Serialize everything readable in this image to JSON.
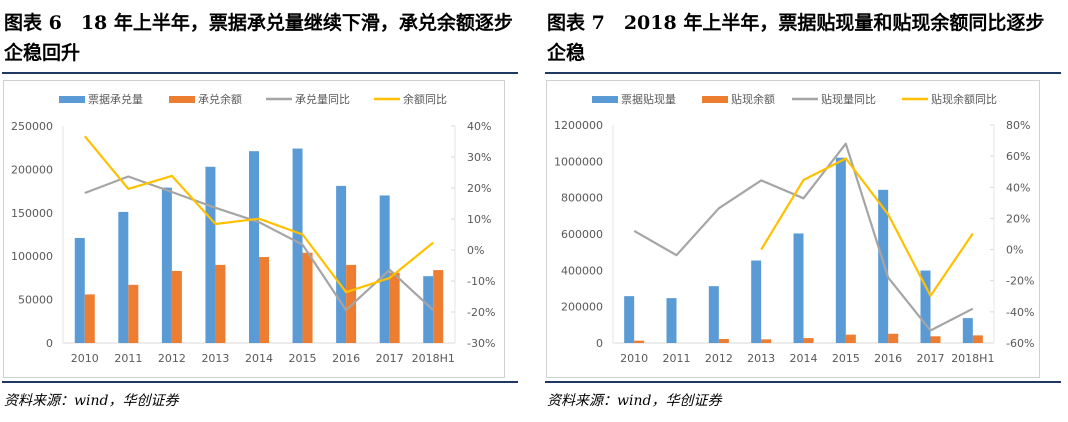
{
  "charts_meta": [
    {
      "title": "图表 6　18 年上半年，票据承兑量继续下滑，承兑余额逐步企稳回升",
      "source": "资料来源：wind，华创证券"
    },
    {
      "title": "图表 7　2018 年上半年，票据贴现量和贴现余额同比逐步企稳",
      "source": "资料来源：wind，华创证券"
    }
  ],
  "colors": {
    "blue": "#5b9bd5",
    "orange": "#ed7d31",
    "gray": "#a5a5a5",
    "yellow": "#ffc000",
    "rule": "#1f3864"
  },
  "chart_data": [
    {
      "type": "bar+line",
      "categories": [
        "2010",
        "2011",
        "2012",
        "2013",
        "2014",
        "2015",
        "2016",
        "2017",
        "2018H1"
      ],
      "ylim": [
        0,
        250000
      ],
      "yticks": [
        "0",
        "50000",
        "100000",
        "150000",
        "200000",
        "250000"
      ],
      "y2lim": [
        -30,
        40
      ],
      "y2ticks": [
        "-30%",
        "-20%",
        "-10%",
        "0%",
        "10%",
        "20%",
        "30%",
        "40%"
      ],
      "legend": "top",
      "bars": [
        {
          "name": "票据承兑量",
          "color": "#5b9bd5",
          "values": [
            121000,
            151000,
            179000,
            203000,
            221000,
            224000,
            181000,
            170000,
            77000
          ]
        },
        {
          "name": "承兑余额",
          "color": "#ed7d31",
          "values": [
            56000,
            67000,
            83000,
            90000,
            99000,
            104000,
            90000,
            81000,
            84000
          ]
        }
      ],
      "lines": [
        {
          "name": "承兑量同比",
          "color": "#a5a5a5",
          "axis": "right",
          "values": [
            18.4,
            23.7,
            18.7,
            13.6,
            9.0,
            1.7,
            -19.4,
            -6.4,
            -19.4
          ]
        },
        {
          "name": "余额同比",
          "color": "#ffc000",
          "axis": "right",
          "values": [
            36.7,
            19.7,
            23.9,
            8.4,
            10.1,
            5.0,
            -13.6,
            -9.0,
            2.4
          ]
        }
      ]
    },
    {
      "type": "bar+line",
      "categories": [
        "2010",
        "2011",
        "2012",
        "2013",
        "2014",
        "2015",
        "2016",
        "2017",
        "2018H1"
      ],
      "ylim": [
        0,
        1200000
      ],
      "yticks": [
        "0",
        "200000",
        "400000",
        "600000",
        "800000",
        "1000000",
        "1200000"
      ],
      "y2lim": [
        -60,
        80
      ],
      "y2ticks": [
        "-60%",
        "-40%",
        "-20%",
        "0%",
        "20%",
        "40%",
        "60%",
        "80%"
      ],
      "legend": "top",
      "bars": [
        {
          "name": "票据贴现量",
          "color": "#5b9bd5",
          "values": [
            258000,
            247000,
            313000,
            454000,
            603000,
            1020000,
            843000,
            399000,
            137000
          ]
        },
        {
          "name": "贴现余额",
          "color": "#ed7d31",
          "values": [
            13000,
            0,
            22000,
            20000,
            27000,
            46000,
            51000,
            37000,
            42000
          ]
        }
      ],
      "lines": [
        {
          "name": "贴现量同比",
          "color": "#a5a5a5",
          "axis": "right",
          "values": [
            12.0,
            -3.6,
            26.5,
            44.4,
            32.9,
            68.0,
            -18.0,
            -52.0,
            -38.0
          ]
        },
        {
          "name": "贴现余额同比",
          "color": "#ffc000",
          "axis": "right",
          "values": [
            null,
            null,
            null,
            0.0,
            44.7,
            58.5,
            22.6,
            -29.7,
            10.3
          ]
        }
      ]
    }
  ]
}
